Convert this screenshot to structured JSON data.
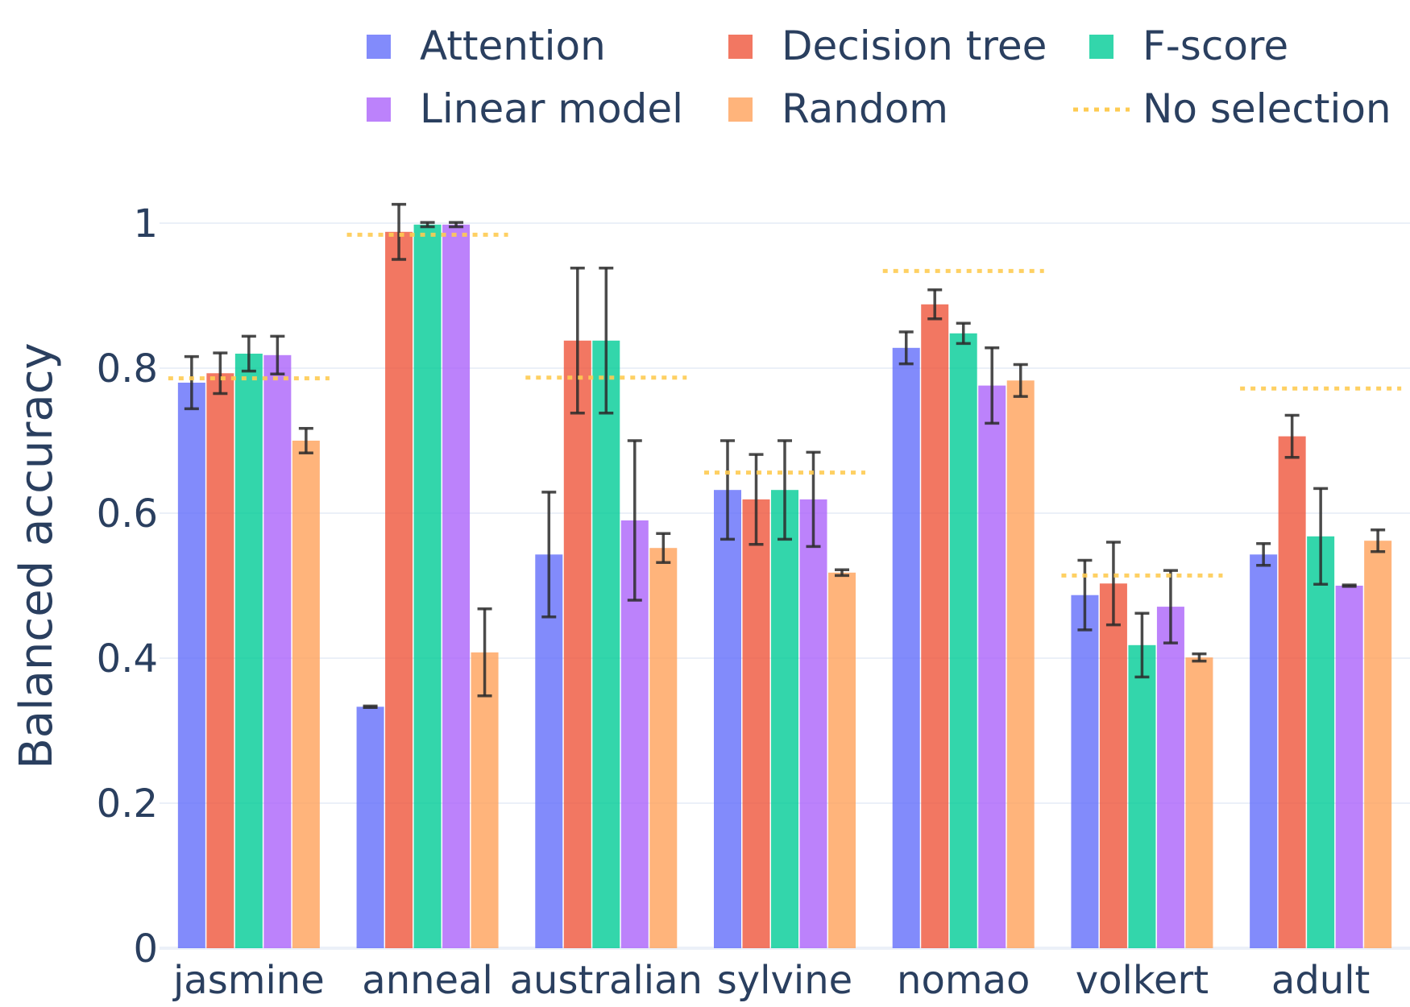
{
  "chart_data": {
    "type": "bar",
    "ylabel": "Balanced accuracy",
    "xlabel": "",
    "title": "",
    "ylim": [
      0,
      1.05
    ],
    "yticks": [
      0,
      0.2,
      0.4,
      0.6,
      0.8,
      1
    ],
    "ytick_labels": [
      "0",
      "0.2",
      "0.4",
      "0.6",
      "0.8",
      "1"
    ],
    "grid": true,
    "legend_position": "top",
    "categories": [
      "jasmine",
      "anneal",
      "australian",
      "sylvine",
      "nomao",
      "volkert",
      "adult"
    ],
    "series": [
      {
        "name": "Attention",
        "color": "#636efa",
        "values": [
          0.78,
          0.333,
          0.543,
          0.632,
          0.828,
          0.487,
          0.543
        ],
        "errors": [
          0.036,
          0.001,
          0.086,
          0.068,
          0.022,
          0.048,
          0.015
        ]
      },
      {
        "name": "Decision tree",
        "color": "#ef553b",
        "values": [
          0.793,
          0.988,
          0.838,
          0.619,
          0.888,
          0.503,
          0.706
        ],
        "errors": [
          0.028,
          0.038,
          0.1,
          0.062,
          0.02,
          0.057,
          0.029
        ]
      },
      {
        "name": "F-score",
        "color": "#00cc96",
        "values": [
          0.82,
          0.998,
          0.838,
          0.632,
          0.848,
          0.418,
          0.568
        ],
        "errors": [
          0.024,
          0.003,
          0.1,
          0.068,
          0.014,
          0.044,
          0.066
        ]
      },
      {
        "name": "Linear model",
        "color": "#ab63fa",
        "values": [
          0.818,
          0.998,
          0.59,
          0.619,
          0.776,
          0.471,
          0.5
        ],
        "errors": [
          0.026,
          0.003,
          0.11,
          0.065,
          0.052,
          0.05,
          0.001
        ]
      },
      {
        "name": "Random",
        "color": "#ffa15a",
        "values": [
          0.7,
          0.408,
          0.552,
          0.518,
          0.783,
          0.401,
          0.562
        ],
        "errors": [
          0.017,
          0.06,
          0.02,
          0.004,
          0.022,
          0.005,
          0.015
        ]
      }
    ],
    "no_selection": {
      "name": "No selection",
      "color": "#fecb52",
      "values": [
        0.786,
        0.984,
        0.787,
        0.656,
        0.934,
        0.514,
        0.772
      ]
    }
  }
}
